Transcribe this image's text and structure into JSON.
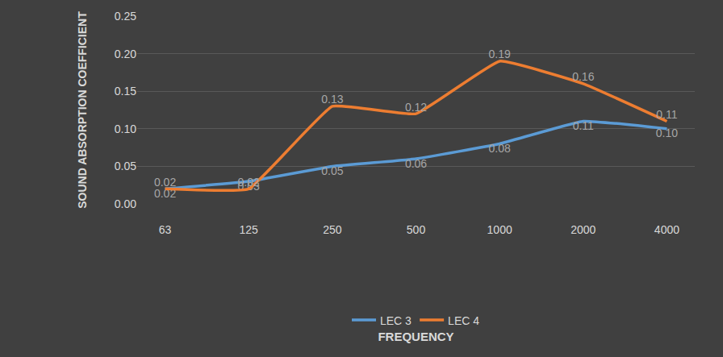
{
  "chart_data": {
    "type": "line",
    "x_label": "FREQUENCY",
    "y_label": "SOUND ABSORPTION COEFFICIENT",
    "categories": [
      "63",
      "125",
      "250",
      "500",
      "1000",
      "2000",
      "4000"
    ],
    "series": [
      {
        "name": "LEC 3",
        "color": "#5b9bd5",
        "values": [
          0.02,
          0.03,
          0.05,
          0.06,
          0.08,
          0.11,
          0.1
        ],
        "value_labels": [
          "0.02",
          "0.03",
          "0.05",
          "0.06",
          "0.08",
          "0.11",
          "0.10"
        ]
      },
      {
        "name": "LEC 4",
        "color": "#ed7d31",
        "values": [
          0.02,
          0.02,
          0.13,
          0.12,
          0.19,
          0.16,
          0.11
        ],
        "value_labels": [
          "0.02",
          "0.02",
          "0.13",
          "0.12",
          "0.19",
          "0.16",
          "0.11"
        ]
      }
    ],
    "ylim": [
      0,
      0.25
    ],
    "yticks": [
      {
        "value": 0,
        "label": "0.00"
      },
      0.05,
      {
        "value": 0.1,
        "label": "0.10"
      },
      0.15,
      {
        "value": 0.2,
        "label": "0.20"
      },
      0.25
    ],
    "grid": true,
    "legend": "bottom",
    "data_labels": true
  }
}
